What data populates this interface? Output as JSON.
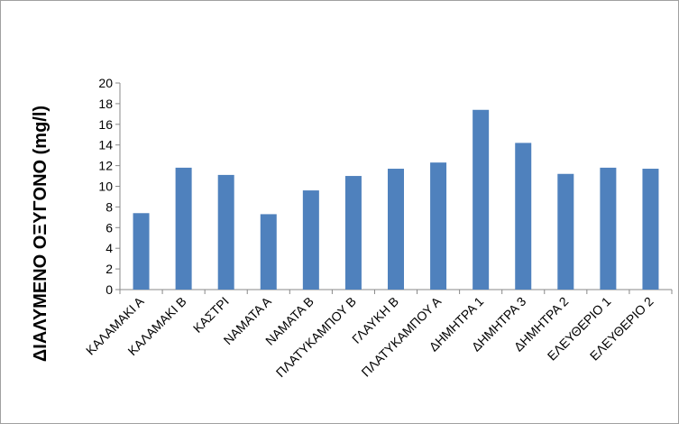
{
  "chart_data": {
    "type": "bar",
    "title": "",
    "xlabel": "",
    "ylabel": "ΔΙΑΛΥΜΕΝΟ ΟΞΥΓΟΝΟ (mg/l)",
    "ylim": [
      0,
      20
    ],
    "yticks": [
      0,
      2,
      4,
      6,
      8,
      10,
      12,
      14,
      16,
      18,
      20
    ],
    "grid": false,
    "legend": "none",
    "bar_color": "#4f81bd",
    "categories": [
      "ΚΑΛΑΜΑΚΙ Α",
      "ΚΑΛΑΜΑΚΙ Β",
      "ΚΑΣΤΡΙ",
      "ΝΑΜΑΤΑ Α",
      "ΝΑΜΑΤΑ Β",
      "ΠΛΑΤΥΚΑΜΠΟΥ Β",
      "ΓΛΑΥΚΗ Β",
      "ΠΛΑΤΥΚΑΜΠΟΥ Α",
      "ΔΗΜΗΤΡΑ 1",
      "ΔΗΜΗΤΡΑ 3",
      "ΔΗΜΗΤΡΑ 2",
      "ΕΛΕΥΘΕΡΙΟ 1",
      "ΕΛΕΥΘΕΡΙΟ 2"
    ],
    "values": [
      7.4,
      11.8,
      11.1,
      7.3,
      9.6,
      11.0,
      11.7,
      12.3,
      17.4,
      14.2,
      11.2,
      11.8,
      11.7
    ]
  }
}
